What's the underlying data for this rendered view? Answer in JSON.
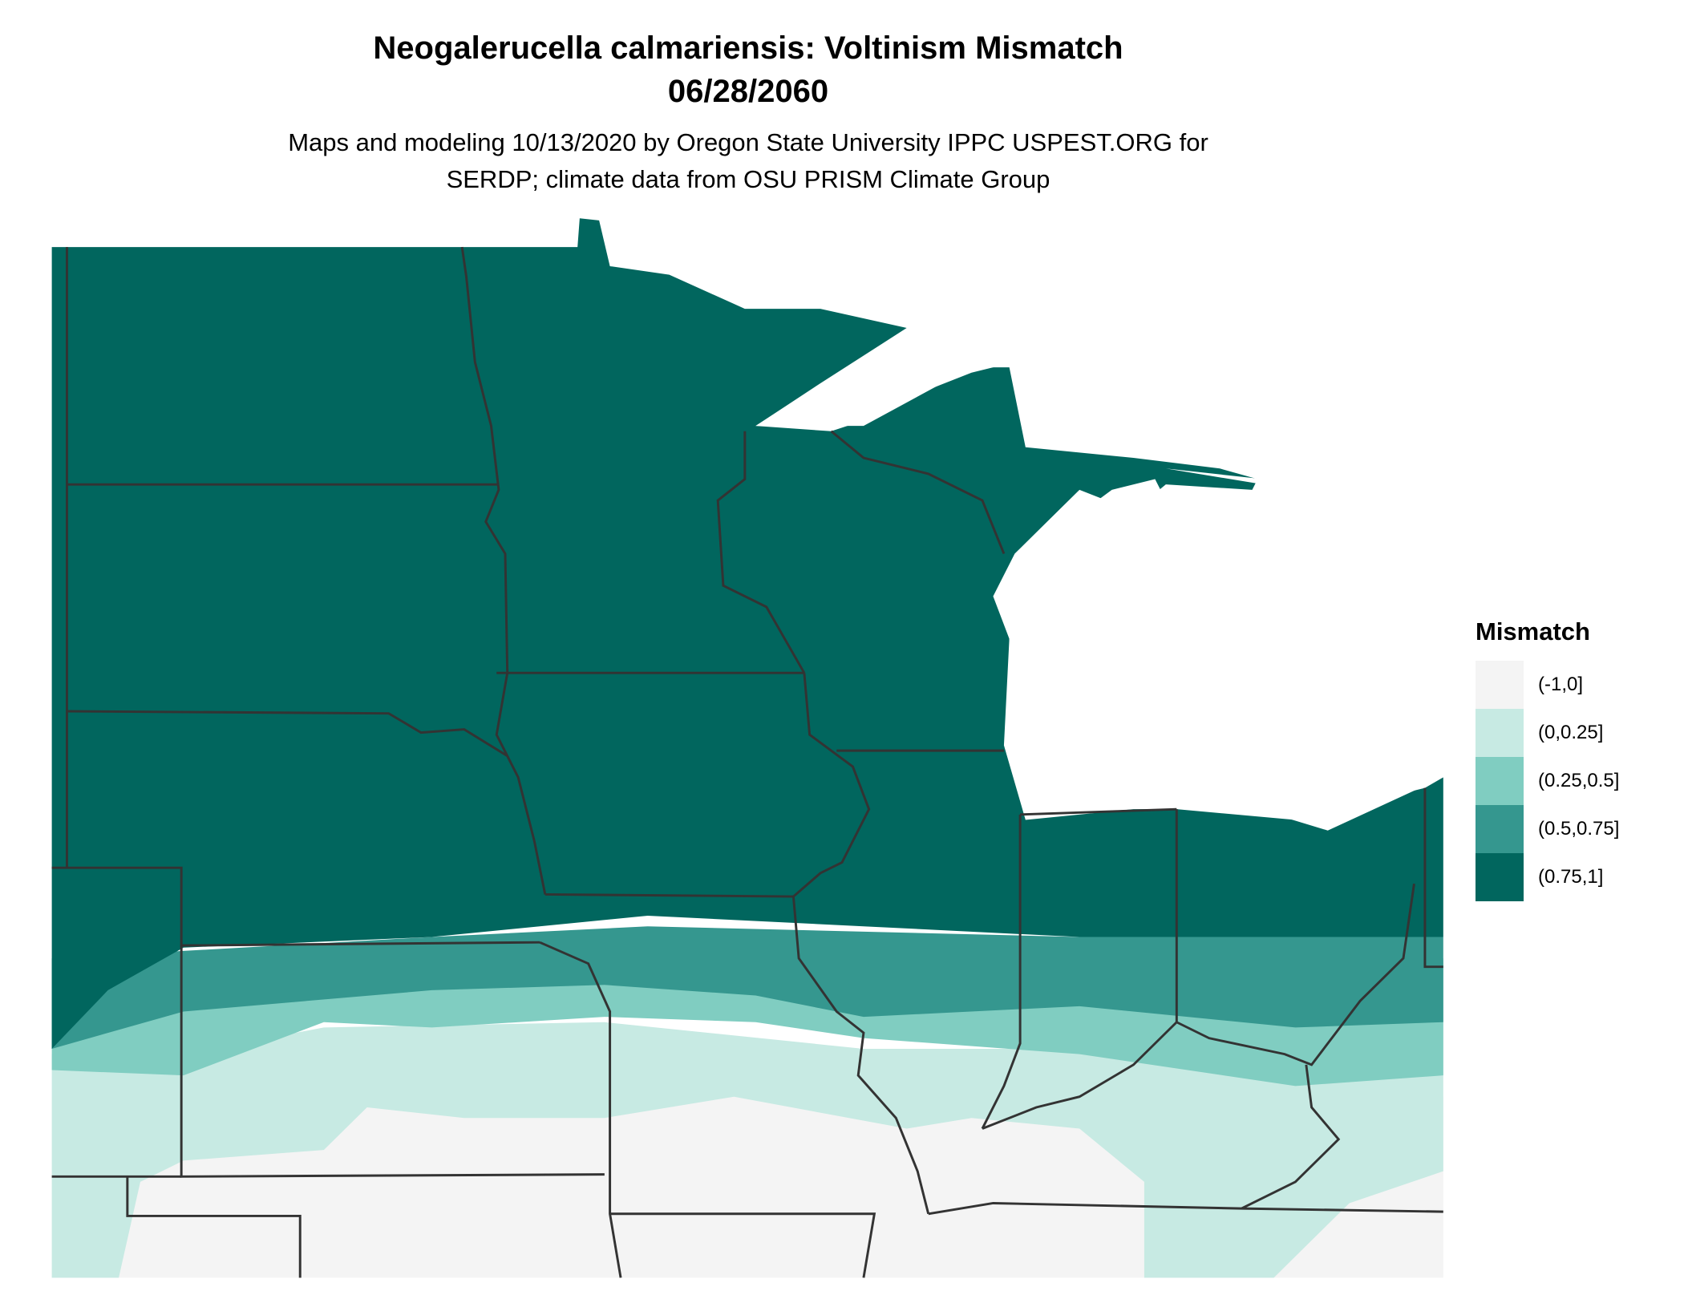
{
  "title_line1": "Neogalerucella calmariensis: Voltinism Mismatch",
  "title_line2": "06/28/2060",
  "subtitle_line1": "Maps and modeling 10/13/2020 by Oregon State University IPPC USPEST.ORG for",
  "subtitle_line2": "SERDP; climate data from OSU PRISM Climate Group",
  "legend": {
    "title": "Mismatch",
    "items": [
      {
        "label": "(-1,0]",
        "color": "#f4f4f4"
      },
      {
        "label": "(0,0.25]",
        "color": "#c7eae3"
      },
      {
        "label": "(0.25,0.5]",
        "color": "#80cdc1"
      },
      {
        "label": "(0.5,0.75]",
        "color": "#35978f"
      },
      {
        "label": "(0.75,1]",
        "color": "#01665e"
      }
    ]
  },
  "colors": {
    "border": "#333333",
    "water": "#ffffff"
  }
}
